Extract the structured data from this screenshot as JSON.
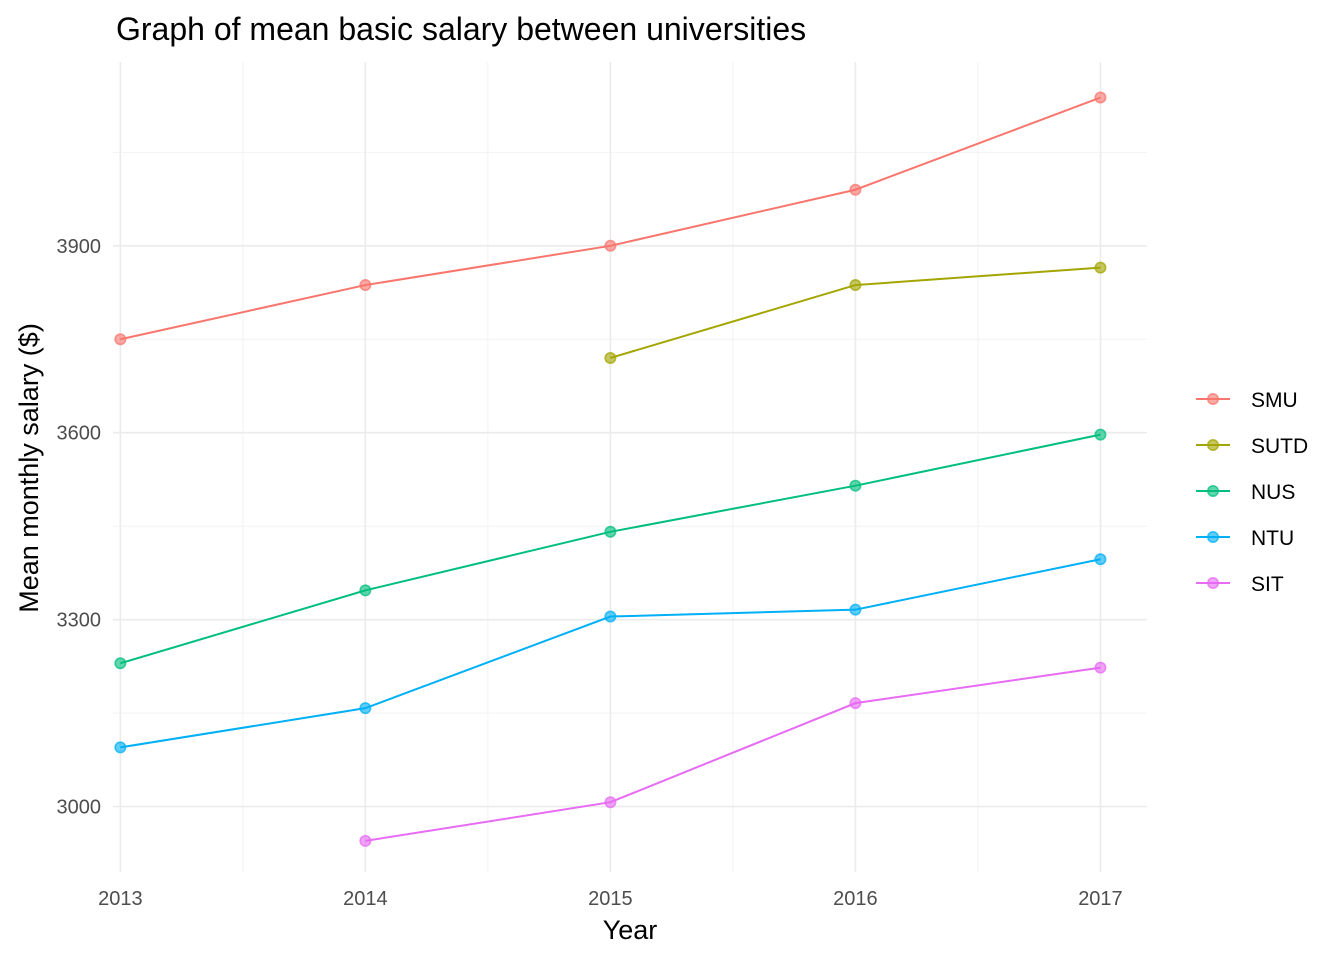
{
  "chart_data": {
    "type": "line",
    "title": "Graph of mean basic salary between universities",
    "xlabel": "Year",
    "ylabel": "Mean monthly salary ($)",
    "x": [
      2013,
      2014,
      2015,
      2016,
      2017
    ],
    "x_ticks": [
      "2013",
      "2014",
      "2015",
      "2016",
      "2017"
    ],
    "y_ticks": [
      3000,
      3300,
      3600,
      3900
    ],
    "xlim": [
      2012.97,
      2017.19
    ],
    "ylim": [
      2895,
      4195
    ],
    "grid": true,
    "legend_position": "right",
    "series": [
      {
        "name": "SMU",
        "color": "#F8766D",
        "values": [
          3750,
          3837,
          3900,
          3990,
          4138
        ]
      },
      {
        "name": "SUTD",
        "color": "#A3A500",
        "values": [
          null,
          null,
          3720,
          3837,
          3865
        ]
      },
      {
        "name": "NUS",
        "color": "#00BF7D",
        "values": [
          3230,
          3347,
          3441,
          3515,
          3597
        ]
      },
      {
        "name": "NTU",
        "color": "#00B0F6",
        "values": [
          3095,
          3158,
          3305,
          3316,
          3397
        ]
      },
      {
        "name": "SIT",
        "color": "#E76BF3",
        "values": [
          null,
          2945,
          3007,
          3166,
          3223
        ]
      }
    ]
  }
}
